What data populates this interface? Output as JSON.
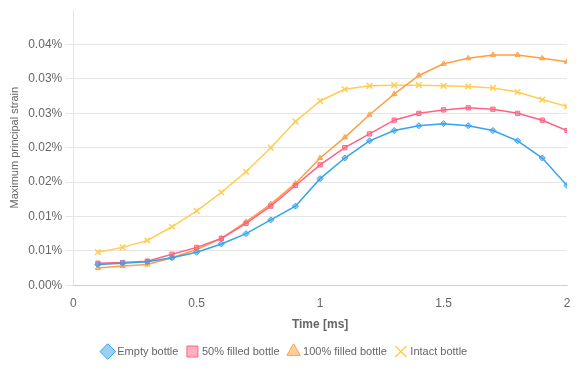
{
  "chart_data": {
    "type": "line",
    "xlabel": "Time [ms]",
    "ylabel": "Maximum principal strain",
    "x": [
      0.1,
      0.2,
      0.3,
      0.4,
      0.5,
      0.6,
      0.7,
      0.8,
      0.9,
      1.0,
      1.1,
      1.2,
      1.3,
      1.4,
      1.5,
      1.6,
      1.7,
      1.8,
      1.9,
      2.0
    ],
    "series": [
      {
        "name": "Empty bottle",
        "marker": "diamond",
        "values": [
          3e-05,
          3.2e-05,
          3.4e-05,
          4e-05,
          4.8e-05,
          6e-05,
          7.5e-05,
          9.5e-05,
          0.000115,
          0.000155,
          0.000185,
          0.00021,
          0.000225,
          0.000232,
          0.000235,
          0.000232,
          0.000225,
          0.00021,
          0.000185,
          0.000145
        ]
      },
      {
        "name": "50% filled bottle",
        "marker": "square",
        "values": [
          3.2e-05,
          3.3e-05,
          3.5e-05,
          4.5e-05,
          5.5e-05,
          6.8e-05,
          9e-05,
          0.000115,
          0.000145,
          0.000175,
          0.0002,
          0.00022,
          0.00024,
          0.00025,
          0.000255,
          0.000258,
          0.000256,
          0.00025,
          0.00024,
          0.000225
        ]
      },
      {
        "name": "100% filled bottle",
        "marker": "triangle",
        "values": [
          2.5e-05,
          2.8e-05,
          3e-05,
          4e-05,
          5.2e-05,
          6.8e-05,
          9.2e-05,
          0.000118,
          0.000148,
          0.000185,
          0.000215,
          0.000248,
          0.000278,
          0.000305,
          0.000322,
          0.00033,
          0.000335,
          0.000335,
          0.00033,
          0.000325
        ]
      },
      {
        "name": "Intact bottle",
        "marker": "x",
        "values": [
          4.8e-05,
          5.5e-05,
          6.5e-05,
          8.5e-05,
          0.000108,
          0.000135,
          0.000165,
          0.0002,
          0.000238,
          0.000268,
          0.000285,
          0.00029,
          0.000291,
          0.000291,
          0.00029,
          0.000289,
          0.000287,
          0.000281,
          0.00027,
          0.00026
        ]
      }
    ],
    "xlim": [
      0,
      2
    ],
    "xticks": [
      0,
      0.5,
      1,
      1.5,
      2
    ],
    "ylim": [
      0,
      0.0004
    ],
    "yticks": [
      {
        "value": 0.0,
        "label": "0.00%"
      },
      {
        "value": 5e-05,
        "label": "0.01%"
      },
      {
        "value": 0.0001,
        "label": "0.01%"
      },
      {
        "value": 0.00015,
        "label": "0.02%"
      },
      {
        "value": 0.0002,
        "label": "0.02%"
      },
      {
        "value": 0.00025,
        "label": "0.03%"
      },
      {
        "value": 0.0003,
        "label": "0.03%"
      },
      {
        "value": 0.00035,
        "label": "0.04%"
      }
    ],
    "grid": "y",
    "legend": "bottom"
  }
}
